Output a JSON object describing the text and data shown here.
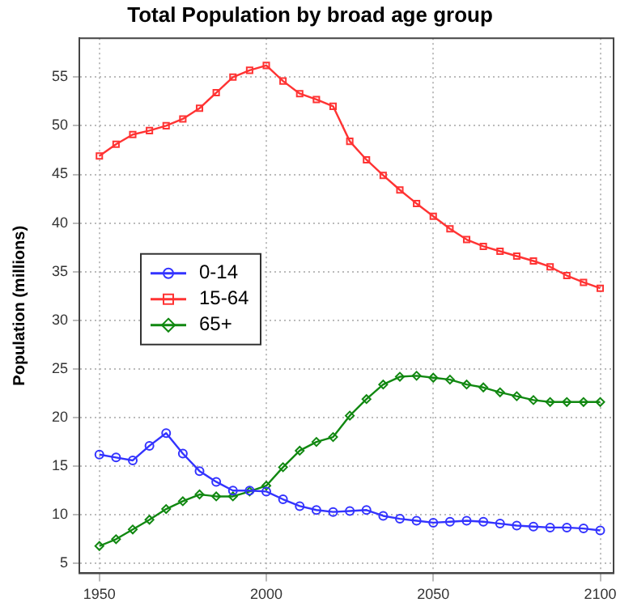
{
  "chart_data": {
    "type": "line",
    "title": "Total Population by broad age group",
    "ylabel": "Population (millions)",
    "x": [
      1950,
      1955,
      1960,
      1965,
      1970,
      1975,
      1980,
      1985,
      1990,
      1995,
      2000,
      2005,
      2010,
      2015,
      2020,
      2025,
      2030,
      2035,
      2040,
      2045,
      2050,
      2055,
      2060,
      2065,
      2070,
      2075,
      2080,
      2085,
      2090,
      2095,
      2100
    ],
    "xlim": [
      1944,
      2104
    ],
    "xticks": [
      1950,
      2000,
      2050,
      2100
    ],
    "ylim": [
      4,
      59
    ],
    "yticks": [
      5,
      10,
      15,
      20,
      25,
      30,
      35,
      40,
      45,
      50,
      55
    ],
    "grid": true,
    "legend": "left",
    "line_style": "solid",
    "series": [
      {
        "name": "0-14",
        "color": "#3333ff",
        "marker": "circle",
        "values": [
          16.2,
          15.9,
          15.6,
          17.1,
          18.4,
          16.3,
          14.5,
          13.4,
          12.5,
          12.5,
          12.4,
          11.6,
          10.9,
          10.5,
          10.3,
          10.4,
          10.5,
          9.9,
          9.6,
          9.4,
          9.2,
          9.3,
          9.4,
          9.3,
          9.1,
          8.9,
          8.8,
          8.7,
          8.7,
          8.6,
          8.4
        ]
      },
      {
        "name": "15-64",
        "color": "#ff3333",
        "marker": "square",
        "values": [
          46.9,
          48.1,
          49.1,
          49.5,
          50.0,
          50.7,
          51.8,
          53.4,
          55.0,
          55.7,
          56.2,
          54.6,
          53.3,
          52.7,
          52.0,
          48.4,
          46.5,
          44.9,
          43.4,
          42.0,
          40.7,
          39.4,
          38.3,
          37.6,
          37.1,
          36.6,
          36.1,
          35.5,
          34.6,
          33.9,
          33.3
        ]
      },
      {
        "name": "65+",
        "color": "#118811",
        "marker": "diamond",
        "values": [
          6.8,
          7.5,
          8.5,
          9.5,
          10.6,
          11.4,
          12.1,
          11.9,
          11.9,
          12.4,
          13.0,
          14.9,
          16.6,
          17.5,
          18.0,
          20.2,
          21.9,
          23.4,
          24.2,
          24.3,
          24.1,
          23.9,
          23.4,
          23.1,
          22.6,
          22.2,
          21.8,
          21.6,
          21.6,
          21.6,
          21.6
        ]
      }
    ]
  }
}
